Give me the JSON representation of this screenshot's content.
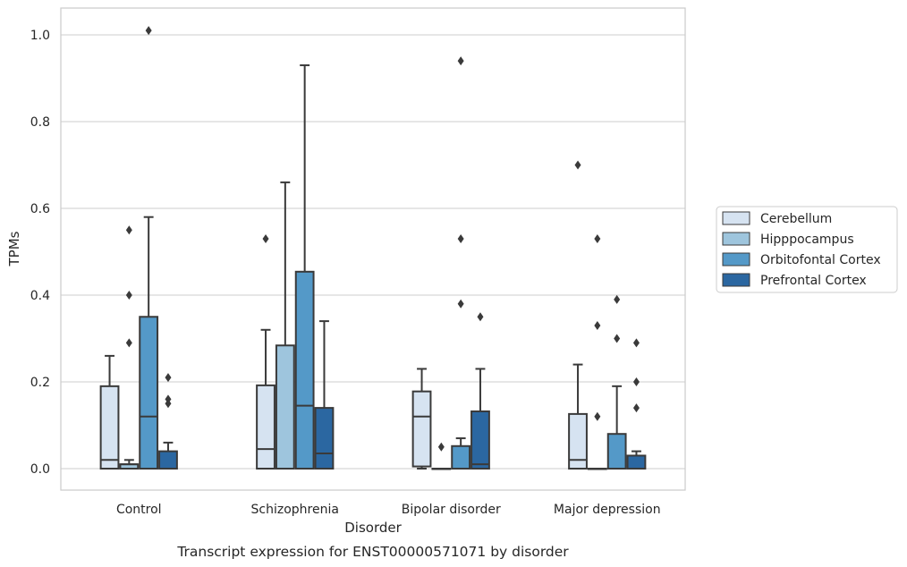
{
  "chart_data": {
    "type": "box",
    "caption": "Transcript expression for ENST00000571071 by disorder",
    "xlabel": "Disorder",
    "ylabel": "TPMs",
    "ylim": [
      -0.05,
      1.06
    ],
    "yticks": [
      0.0,
      0.2,
      0.4,
      0.6,
      0.8,
      1.0
    ],
    "ytick_labels": [
      "0.0",
      "0.2",
      "0.4",
      "0.6",
      "0.8",
      "1.0"
    ],
    "grid": "horizontal",
    "legend_position": "right",
    "categories": [
      "Control",
      "Schizophrenia",
      "Bipolar disorder",
      "Major depression"
    ],
    "series": [
      {
        "name": "Cerebellum",
        "color": "#d6e3f1",
        "boxes": [
          {
            "q1": 0.0,
            "median": 0.02,
            "q3": 0.19,
            "whisker_low": 0.0,
            "whisker_high": 0.26,
            "outliers": []
          },
          {
            "q1": 0.0,
            "median": 0.045,
            "q3": 0.192,
            "whisker_low": 0.0,
            "whisker_high": 0.32,
            "outliers": [
              0.53
            ]
          },
          {
            "q1": 0.005,
            "median": 0.12,
            "q3": 0.178,
            "whisker_low": 0.0,
            "whisker_high": 0.23,
            "outliers": []
          },
          {
            "q1": 0.0,
            "median": 0.02,
            "q3": 0.126,
            "whisker_low": 0.0,
            "whisker_high": 0.24,
            "outliers": [
              0.7
            ]
          }
        ]
      },
      {
        "name": "Hipppocampus",
        "color": "#9ec5dd",
        "boxes": [
          {
            "q1": 0.0,
            "median": 0.01,
            "q3": 0.01,
            "whisker_low": 0.0,
            "whisker_high": 0.02,
            "outliers": [
              0.55,
              0.4,
              0.29
            ]
          },
          {
            "q1": 0.0,
            "median": 0.0,
            "q3": 0.284,
            "whisker_low": 0.0,
            "whisker_high": 0.66,
            "outliers": []
          },
          {
            "q1": 0.0,
            "median": 0.0,
            "q3": 0.0,
            "whisker_low": 0.0,
            "whisker_high": 0.0,
            "outliers": [
              0.05
            ]
          },
          {
            "q1": 0.0,
            "median": 0.0,
            "q3": 0.0,
            "whisker_low": 0.0,
            "whisker_high": 0.0,
            "outliers": [
              0.53,
              0.33,
              0.12
            ]
          }
        ]
      },
      {
        "name": "Orbitofontal Cortex",
        "color": "#5499c8",
        "boxes": [
          {
            "q1": 0.0,
            "median": 0.12,
            "q3": 0.35,
            "whisker_low": 0.0,
            "whisker_high": 0.58,
            "outliers": [
              1.01
            ]
          },
          {
            "q1": 0.0,
            "median": 0.145,
            "q3": 0.454,
            "whisker_low": 0.0,
            "whisker_high": 0.93,
            "outliers": []
          },
          {
            "q1": 0.0,
            "median": 0.0,
            "q3": 0.052,
            "whisker_low": 0.0,
            "whisker_high": 0.07,
            "outliers": [
              0.94,
              0.53,
              0.38
            ]
          },
          {
            "q1": 0.0,
            "median": 0.0,
            "q3": 0.08,
            "whisker_low": 0.0,
            "whisker_high": 0.19,
            "outliers": [
              0.39,
              0.3
            ]
          }
        ]
      },
      {
        "name": "Prefrontal Cortex",
        "color": "#2b67a1",
        "boxes": [
          {
            "q1": 0.0,
            "median": 0.0,
            "q3": 0.04,
            "whisker_low": 0.0,
            "whisker_high": 0.06,
            "outliers": [
              0.21,
              0.16,
              0.15
            ]
          },
          {
            "q1": 0.0,
            "median": 0.035,
            "q3": 0.14,
            "whisker_low": 0.0,
            "whisker_high": 0.34,
            "outliers": []
          },
          {
            "q1": 0.0,
            "median": 0.01,
            "q3": 0.132,
            "whisker_low": 0.0,
            "whisker_high": 0.23,
            "outliers": [
              0.35
            ]
          },
          {
            "q1": 0.0,
            "median": 0.0,
            "q3": 0.03,
            "whisker_low": 0.0,
            "whisker_high": 0.04,
            "outliers": [
              0.29,
              0.2,
              0.14
            ]
          }
        ]
      }
    ]
  }
}
